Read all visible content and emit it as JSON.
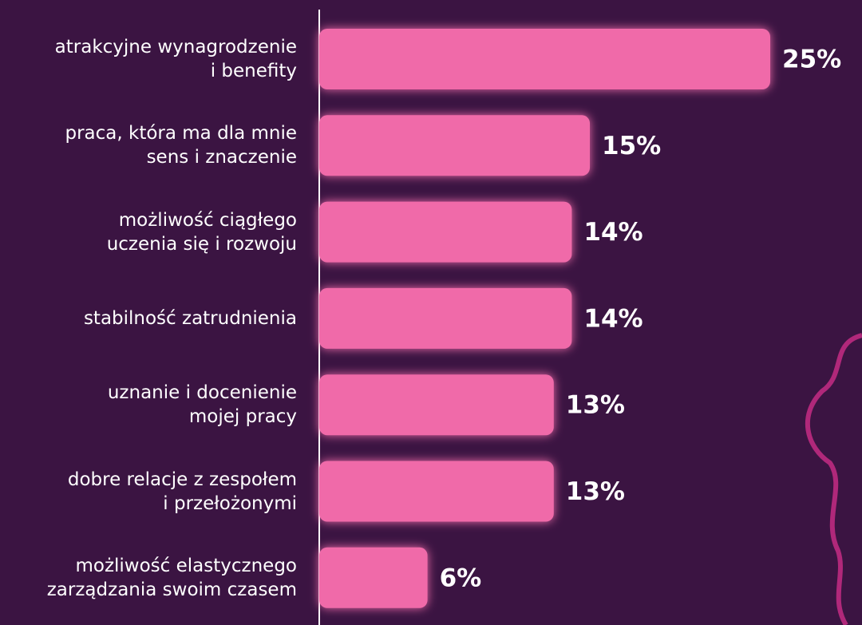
{
  "chart_data": {
    "type": "bar",
    "orientation": "horizontal",
    "categories": [
      "atrakcyjne wynagrodzenie\ni benefity",
      "praca, która ma dla mnie\nsens i znaczenie",
      "możliwość ciągłego\nuczenia się i rozwoju",
      "stabilność zatrudnienia",
      "uznanie i docenienie\nmojej pracy",
      "dobre relacje z zespołem\ni przełożonymi",
      "możliwość elastycznego\nzarządzania swoim czasem"
    ],
    "values": [
      25,
      15,
      14,
      14,
      13,
      13,
      6
    ],
    "value_labels": [
      "25%",
      "15%",
      "14%",
      "14%",
      "13%",
      "13%",
      "6%"
    ],
    "color": "#f06aa9"
  }
}
